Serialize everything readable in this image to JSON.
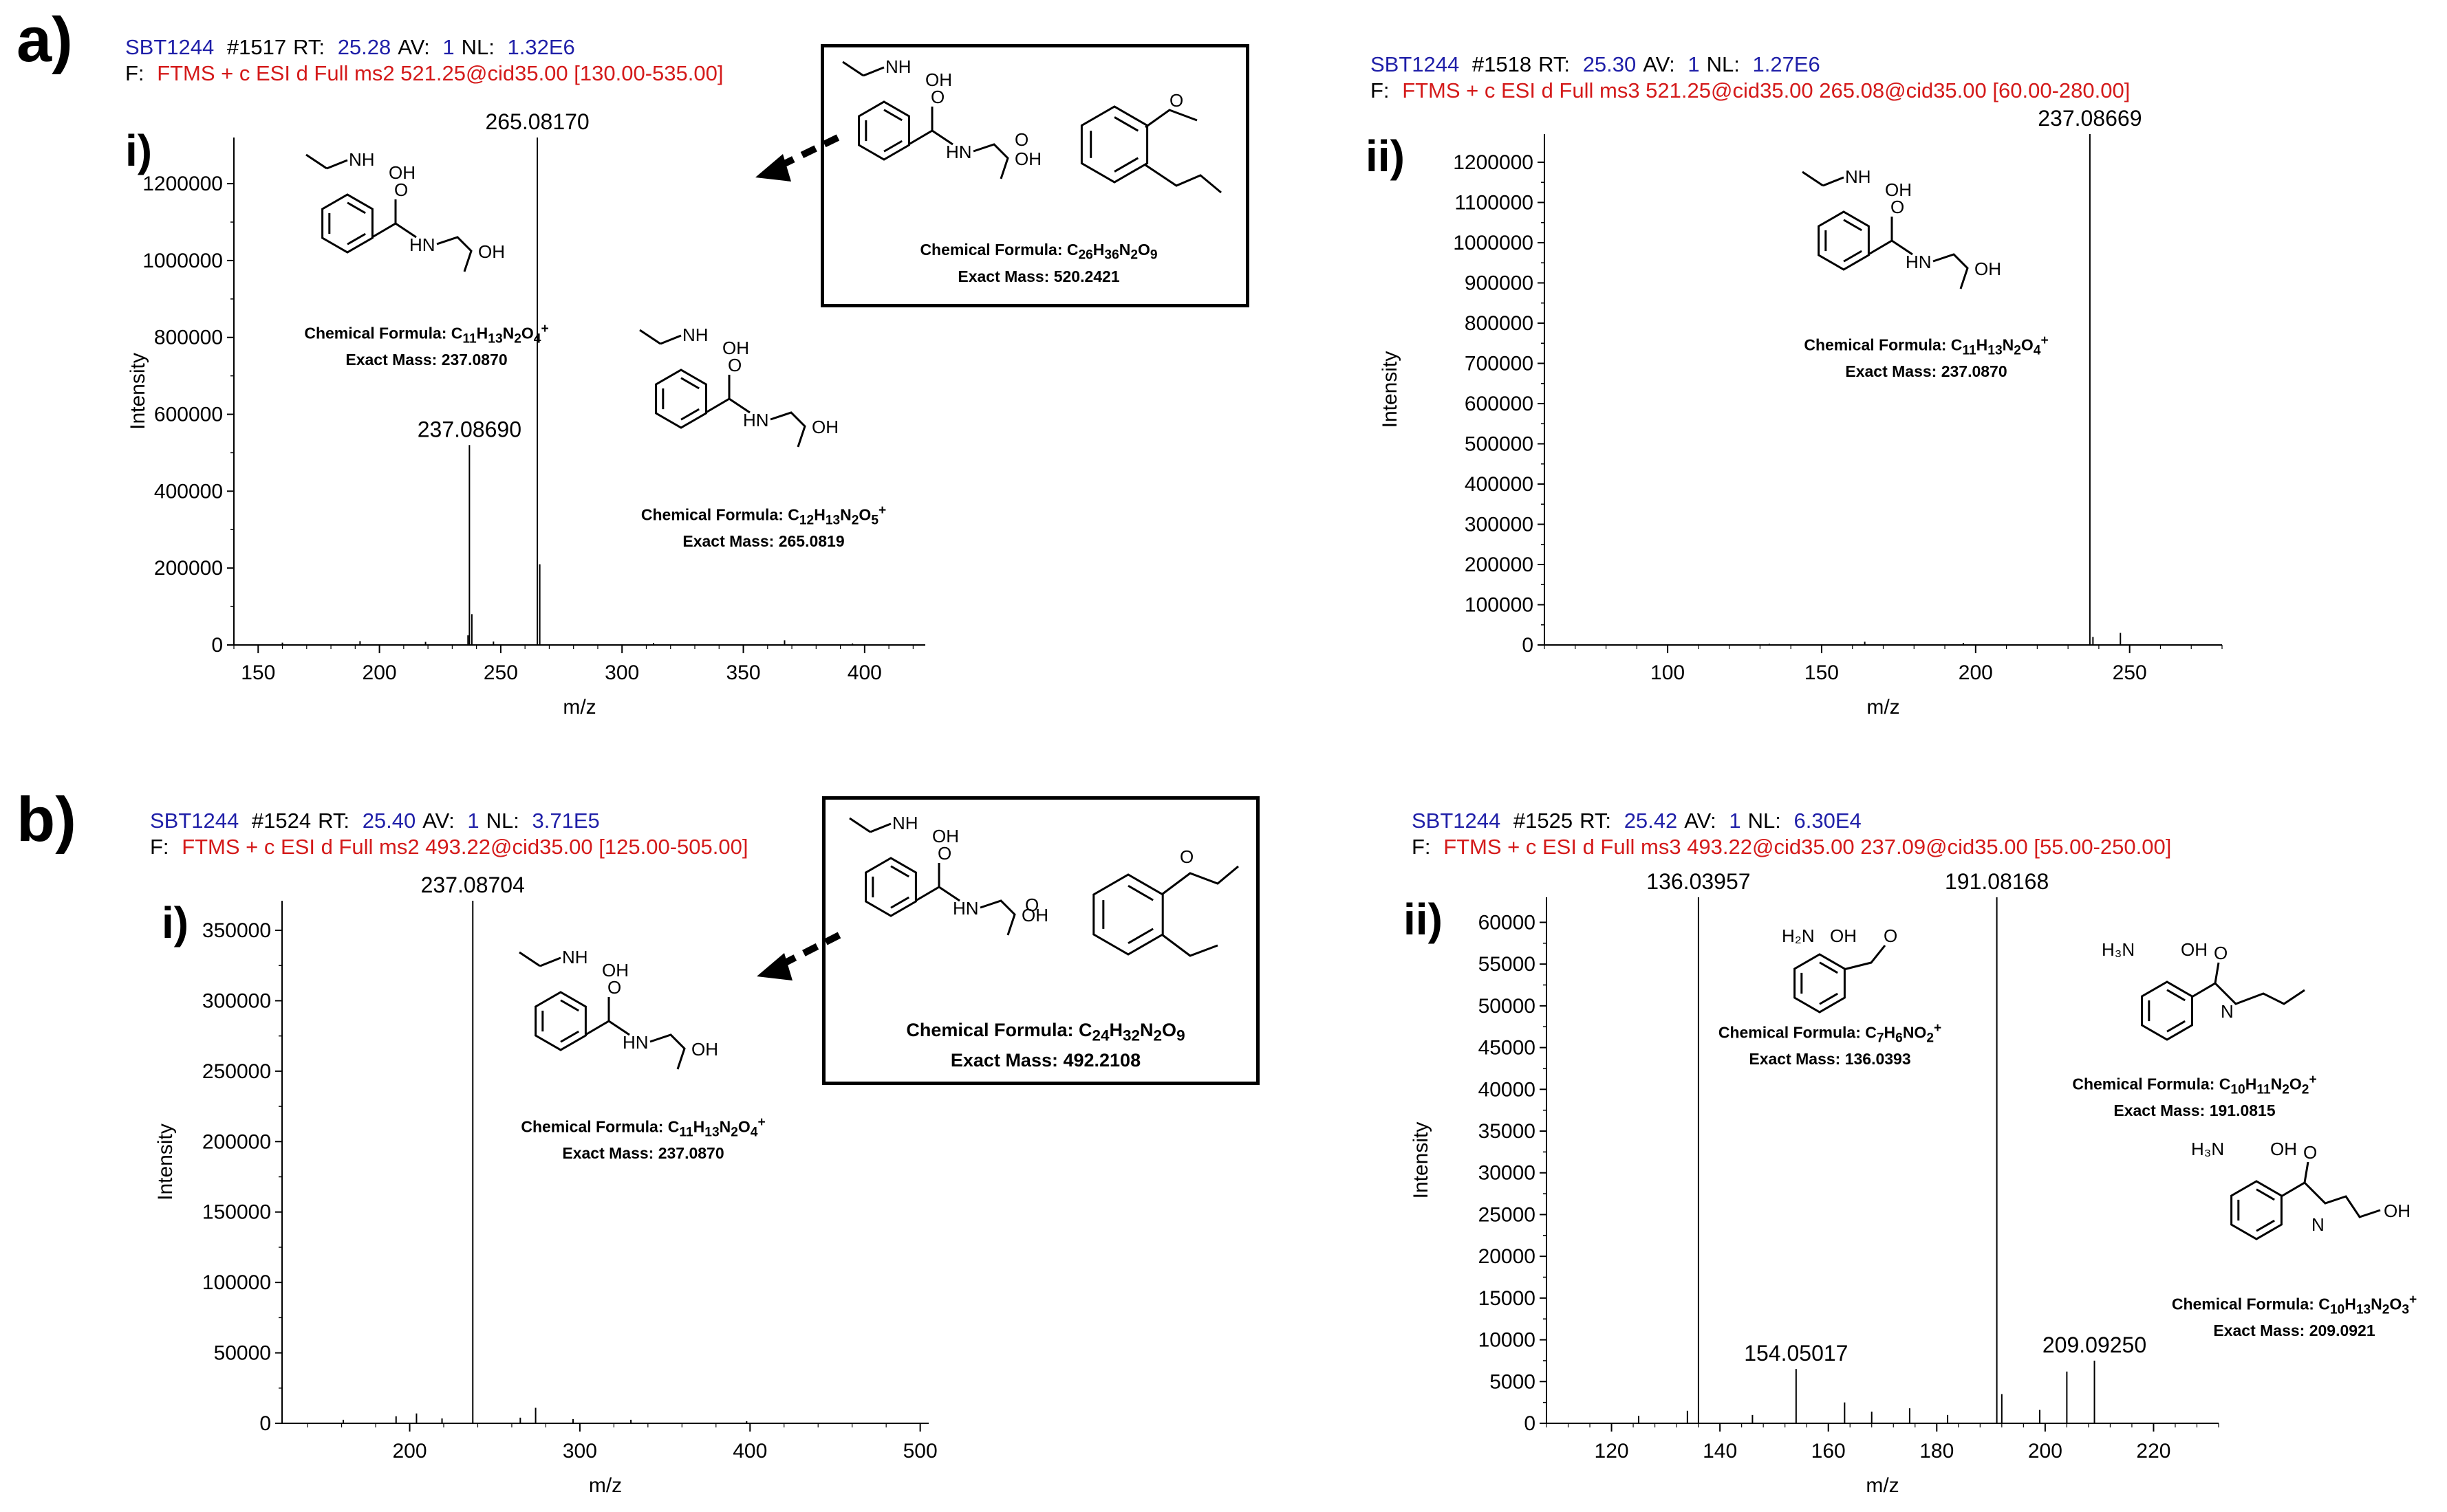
{
  "figure": {
    "panel_a": "a)",
    "panel_b": "b)",
    "sub_i": "i)",
    "sub_ii": "ii)"
  },
  "spectra": [
    {
      "id": "a-i",
      "header": {
        "sample": "SBT1244",
        "scan": "#1517",
        "rt_label": "RT:",
        "rt": "25.28",
        "av_label": "AV:",
        "av": "1",
        "nl_label": "NL:",
        "nl": "1.32E6",
        "filter_prefix": "F:",
        "filter": "FTMS + c ESI d Full ms2 521.25@cid35.00 [130.00-535.00]"
      }
    },
    {
      "id": "a-ii",
      "header": {
        "sample": "SBT1244",
        "scan": "#1518",
        "rt_label": "RT:",
        "rt": "25.30",
        "av_label": "AV:",
        "av": "1",
        "nl_label": "NL:",
        "nl": "1.27E6",
        "filter_prefix": "F:",
        "filter": "FTMS + c ESI d Full ms3 521.25@cid35.00 265.08@cid35.00 [60.00-280.00]"
      }
    },
    {
      "id": "b-i",
      "header": {
        "sample": "SBT1244",
        "scan": "#1524",
        "rt_label": "RT:",
        "rt": "25.40",
        "av_label": "AV:",
        "av": "1",
        "nl_label": "NL:",
        "nl": "3.71E5",
        "filter_prefix": "F:",
        "filter": "FTMS + c ESI d Full ms2 493.22@cid35.00 [125.00-505.00]"
      }
    },
    {
      "id": "b-ii",
      "header": {
        "sample": "SBT1244",
        "scan": "#1525",
        "rt_label": "RT:",
        "rt": "25.42",
        "av_label": "AV:",
        "av": "1",
        "nl_label": "NL:",
        "nl": "6.30E4",
        "filter_prefix": "F:",
        "filter": "FTMS + c ESI d Full ms3 493.22@cid35.00 237.09@cid35.00 [55.00-250.00]"
      }
    }
  ],
  "structures": {
    "parent_a": {
      "formula_prefix": "Chemical Formula: C",
      "formula": "C26H36N2O9",
      "formula_html": "Chemical Formula: C<sub>26</sub>H<sub>36</sub>N<sub>2</sub>O<sub>9</sub>",
      "mass": "Exact Mass: 520.2421"
    },
    "parent_b": {
      "formula": "C24H32N2O9",
      "formula_html": "Chemical Formula: C<sub>24</sub>H<sub>32</sub>N<sub>2</sub>O<sub>9</sub>",
      "mass": "Exact Mass: 492.2108"
    },
    "frag_237": {
      "formula": "C11H13N2O4+",
      "formula_html": "Chemical Formula: C<sub>11</sub>H<sub>13</sub>N<sub>2</sub>O<sub>4</sub><sup>+</sup>",
      "mass": "Exact Mass: 237.0870"
    },
    "frag_265": {
      "formula": "C12H13N2O5+",
      "formula_html": "Chemical Formula: C<sub>12</sub>H<sub>13</sub>N<sub>2</sub>O<sub>5</sub><sup>+</sup>",
      "mass": "Exact Mass: 265.0819"
    },
    "frag_136": {
      "formula": "C7H6NO2+",
      "formula_html": "Chemical Formula: C<sub>7</sub>H<sub>6</sub>NO<sub>2</sub><sup>+</sup>",
      "mass": "Exact Mass: 136.0393"
    },
    "frag_191": {
      "formula": "C10H11N2O2+",
      "formula_html": "Chemical Formula: C<sub>10</sub>H<sub>11</sub>N<sub>2</sub>O<sub>2</sub><sup>+</sup>",
      "mass": "Exact Mass: 191.0815"
    },
    "frag_209": {
      "formula": "C10H13N2O3+",
      "formula_html": "Chemical Formula: C<sub>10</sub>H<sub>13</sub>N<sub>2</sub>O<sub>3</sub><sup>+</sup>",
      "mass": "Exact Mass: 209.0921"
    }
  },
  "chart_data": [
    {
      "type": "bar",
      "id": "a-i",
      "xlabel": "m/z",
      "ylabel": "Intensity",
      "xlim": [
        140,
        425
      ],
      "ylim": [
        0,
        1320000
      ],
      "xticks": [
        150,
        200,
        250,
        300,
        350,
        400
      ],
      "yticks": [
        0,
        200000,
        400000,
        600000,
        800000,
        1000000,
        1200000
      ],
      "peaks": [
        {
          "mz": 265.0817,
          "intensity": 1320000,
          "label": "265.08170"
        },
        {
          "mz": 237.0869,
          "intensity": 520000,
          "label": "237.08690"
        },
        {
          "mz": 266.08,
          "intensity": 210000
        },
        {
          "mz": 238.09,
          "intensity": 80000
        },
        {
          "mz": 236.5,
          "intensity": 25000
        },
        {
          "mz": 192,
          "intensity": 10000
        },
        {
          "mz": 160,
          "intensity": 6000
        },
        {
          "mz": 219,
          "intensity": 8000
        },
        {
          "mz": 247,
          "intensity": 9000
        },
        {
          "mz": 367,
          "intensity": 12000
        },
        {
          "mz": 313,
          "intensity": 5000
        },
        {
          "mz": 395,
          "intensity": 4000
        }
      ]
    },
    {
      "type": "bar",
      "id": "a-ii",
      "xlabel": "m/z",
      "ylabel": "Intensity",
      "xlim": [
        60,
        280
      ],
      "ylim": [
        0,
        1270000
      ],
      "xticks": [
        100,
        150,
        200,
        250
      ],
      "yticks": [
        0,
        100000,
        200000,
        300000,
        400000,
        500000,
        600000,
        700000,
        800000,
        900000,
        1000000,
        1100000,
        1200000
      ],
      "peaks": [
        {
          "mz": 237.0867,
          "intensity": 1270000,
          "label": "237.08669"
        },
        {
          "mz": 247,
          "intensity": 30000
        },
        {
          "mz": 238.09,
          "intensity": 20000
        },
        {
          "mz": 164,
          "intensity": 8000
        },
        {
          "mz": 196,
          "intensity": 5000
        },
        {
          "mz": 133,
          "intensity": 3000
        },
        {
          "mz": 110,
          "intensity": 2000
        }
      ]
    },
    {
      "type": "bar",
      "id": "b-i",
      "xlabel": "m/z",
      "ylabel": "Intensity",
      "xlim": [
        125,
        505
      ],
      "ylim": [
        0,
        371000
      ],
      "xticks": [
        200,
        300,
        400,
        500
      ],
      "yticks": [
        0,
        50000,
        100000,
        150000,
        200000,
        250000,
        300000,
        350000
      ],
      "peaks": [
        {
          "mz": 237.087,
          "intensity": 371000,
          "label": "237.08704"
        },
        {
          "mz": 274,
          "intensity": 11000
        },
        {
          "mz": 204,
          "intensity": 7000
        },
        {
          "mz": 192,
          "intensity": 5000
        },
        {
          "mz": 265,
          "intensity": 4000
        },
        {
          "mz": 219,
          "intensity": 3500
        },
        {
          "mz": 296,
          "intensity": 3000
        },
        {
          "mz": 330,
          "intensity": 2500
        },
        {
          "mz": 161,
          "intensity": 2500
        },
        {
          "mz": 398,
          "intensity": 1500
        }
      ]
    },
    {
      "type": "bar",
      "id": "b-ii",
      "xlabel": "m/z",
      "ylabel": "Intensity",
      "xlim": [
        108,
        232
      ],
      "ylim": [
        0,
        63000
      ],
      "xticks": [
        120,
        140,
        160,
        180,
        200,
        220
      ],
      "yticks": [
        0,
        5000,
        10000,
        15000,
        20000,
        25000,
        30000,
        35000,
        40000,
        45000,
        50000,
        55000,
        60000
      ],
      "peaks": [
        {
          "mz": 136.0396,
          "intensity": 63000,
          "label": "136.03957"
        },
        {
          "mz": 191.0817,
          "intensity": 63000,
          "label": "191.08168"
        },
        {
          "mz": 154.0502,
          "intensity": 6500,
          "label": "154.05017"
        },
        {
          "mz": 209.0925,
          "intensity": 7500,
          "label": "209.09250"
        },
        {
          "mz": 204.0,
          "intensity": 6200
        },
        {
          "mz": 192.0,
          "intensity": 3500
        },
        {
          "mz": 163.0,
          "intensity": 2500
        },
        {
          "mz": 134.0,
          "intensity": 1500
        },
        {
          "mz": 175.0,
          "intensity": 1800
        },
        {
          "mz": 199.0,
          "intensity": 1600
        },
        {
          "mz": 168.0,
          "intensity": 1400
        },
        {
          "mz": 146.0,
          "intensity": 1000
        },
        {
          "mz": 125.0,
          "intensity": 900
        },
        {
          "mz": 182.0,
          "intensity": 1000
        }
      ]
    }
  ]
}
